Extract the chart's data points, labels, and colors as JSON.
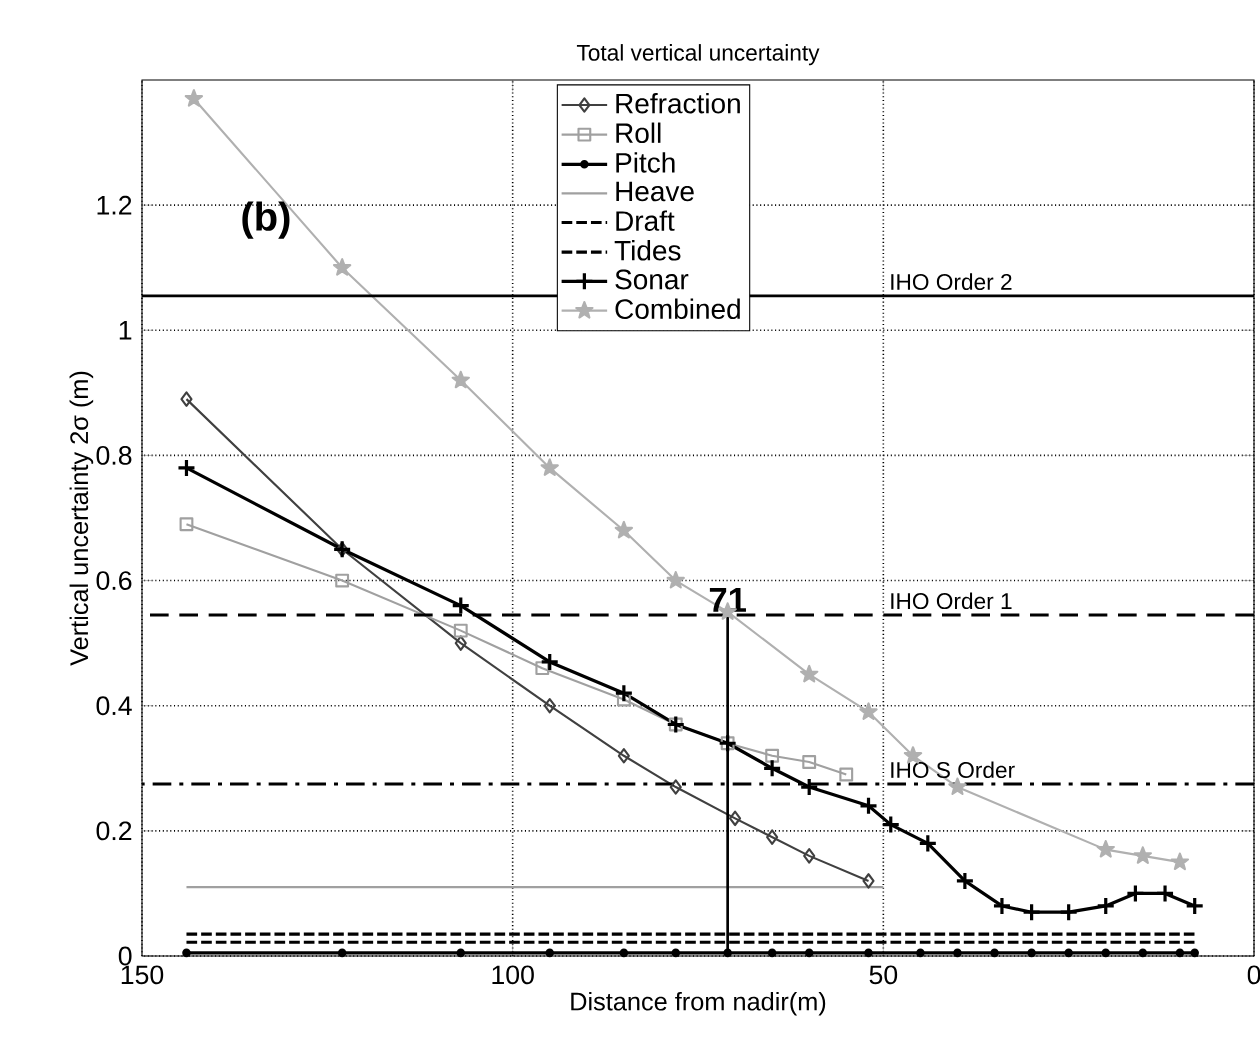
{
  "chart_data": {
    "type": "line",
    "title": "Total vertical uncertainty",
    "xlabel": "Distance from nadir(m)",
    "ylabel": "Vertical uncertainty 2σ (m)",
    "xlim": [
      150,
      0
    ],
    "ylim": [
      0,
      1.4
    ],
    "xticks": [
      150,
      100,
      50,
      0
    ],
    "yticks": [
      0,
      0.2,
      0.4,
      0.6,
      0.8,
      1,
      1.2
    ],
    "grid": true,
    "legend": "top",
    "series": [
      {
        "name": "Refraction",
        "color": "#404040",
        "marker": "diamond",
        "line_style": "solid",
        "x": [
          144,
          123,
          107,
          95,
          85,
          78,
          70,
          65,
          60,
          52
        ],
        "values": [
          0.89,
          0.65,
          0.5,
          0.4,
          0.32,
          0.27,
          0.22,
          0.19,
          0.16,
          0.12
        ]
      },
      {
        "name": "Roll",
        "color": "#a0a0a0",
        "marker": "square",
        "line_style": "solid",
        "x": [
          144,
          123,
          107,
          96,
          85,
          78,
          71,
          65,
          60,
          55
        ],
        "values": [
          0.69,
          0.6,
          0.52,
          0.46,
          0.41,
          0.37,
          0.34,
          0.32,
          0.31,
          0.29
        ]
      },
      {
        "name": "Pitch",
        "color": "#000000",
        "marker": "circle",
        "line_style": "solid",
        "x": [
          144,
          123,
          107,
          95,
          85,
          78,
          71,
          65,
          60,
          52,
          45,
          40,
          35,
          30,
          25,
          20,
          15,
          10,
          8
        ],
        "values": [
          0.005,
          0.005,
          0.005,
          0.005,
          0.005,
          0.005,
          0.005,
          0.005,
          0.005,
          0.005,
          0.005,
          0.005,
          0.005,
          0.005,
          0.005,
          0.005,
          0.005,
          0.005,
          0.005
        ]
      },
      {
        "name": "Heave",
        "color": "#a0a0a0",
        "marker": "none",
        "line_style": "solid",
        "x": [
          144,
          50
        ],
        "values": [
          0.11,
          0.11
        ]
      },
      {
        "name": "Draft",
        "color": "#000000",
        "marker": "none",
        "line_style": "dashed",
        "x": [
          144,
          8
        ],
        "values": [
          0.035,
          0.035
        ]
      },
      {
        "name": "Tides",
        "color": "#000000",
        "marker": "none",
        "line_style": "dashed",
        "x": [
          144,
          8
        ],
        "values": [
          0.022,
          0.022
        ]
      },
      {
        "name": "Sonar",
        "color": "#000000",
        "marker": "cross",
        "line_style": "solid",
        "x": [
          144,
          123,
          107,
          95,
          85,
          78,
          71,
          65,
          60,
          52,
          49,
          44,
          39,
          34,
          30,
          25,
          20,
          16,
          12,
          8
        ],
        "values": [
          0.78,
          0.65,
          0.56,
          0.47,
          0.42,
          0.37,
          0.34,
          0.3,
          0.27,
          0.24,
          0.21,
          0.18,
          0.12,
          0.08,
          0.07,
          0.07,
          0.08,
          0.1,
          0.1,
          0.08
        ]
      },
      {
        "name": "Combined",
        "color": "#b0b0b0",
        "marker": "star",
        "line_style": "solid",
        "x": [
          143,
          123,
          107,
          95,
          85,
          78,
          71,
          60,
          52,
          46,
          40,
          20,
          15,
          10
        ],
        "values": [
          1.37,
          1.1,
          0.92,
          0.78,
          0.68,
          0.6,
          0.55,
          0.45,
          0.39,
          0.32,
          0.27,
          0.17,
          0.16,
          0.15
        ]
      }
    ],
    "ref_lines": [
      {
        "axis": "y",
        "value": 1.055,
        "label": "IHO Order 2",
        "color": "#000000",
        "line_style": "solid"
      },
      {
        "axis": "y",
        "value": 0.545,
        "label": "IHO Order 1",
        "color": "#000000",
        "line_style": "dashed"
      },
      {
        "axis": "y",
        "value": 0.275,
        "label": "IHO S Order",
        "color": "#000000",
        "line_style": "dashdotted"
      }
    ],
    "annotations": [
      "(b)",
      {
        "text": "71",
        "x": 71,
        "y": 0.545
      }
    ]
  }
}
